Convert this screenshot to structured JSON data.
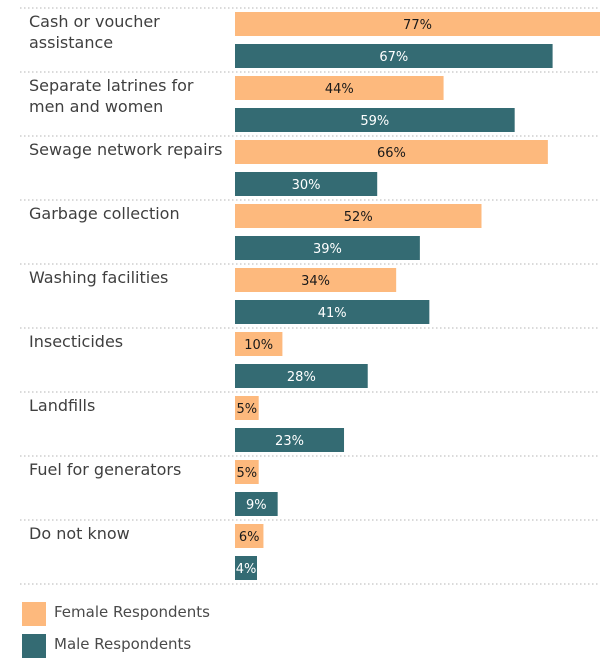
{
  "chart_data": {
    "type": "bar",
    "orientation": "horizontal",
    "categories": [
      "Cash or voucher assistance",
      "Separate latrines for men and women",
      "Sewage network repairs",
      "Garbage collection",
      "Washing facilities",
      "Insecticides",
      "Landfills",
      "Fuel for generators",
      "Do not know"
    ],
    "category_lines": [
      [
        "Cash or voucher",
        "assistance"
      ],
      [
        "Separate latrines for",
        "men and women"
      ],
      [
        "Sewage network repairs"
      ],
      [
        "Garbage collection"
      ],
      [
        "Washing facilities"
      ],
      [
        "Insecticides"
      ],
      [
        "Landfills"
      ],
      [
        "Fuel for generators"
      ],
      [
        "Do not know"
      ]
    ],
    "series": [
      {
        "name": "Female Respondents",
        "color": "#FDB97D",
        "label_color": "#1a1a1a",
        "values": [
          77,
          44,
          66,
          52,
          34,
          10,
          5,
          5,
          6
        ],
        "labels": [
          "77%",
          "44%",
          "66%",
          "52%",
          "34%",
          "10%",
          "5%",
          "5%",
          "6%"
        ]
      },
      {
        "name": "Male Respondents",
        "color": "#346B73",
        "label_color": "#ffffff",
        "values": [
          67,
          59,
          30,
          39,
          41,
          28,
          23,
          9,
          4
        ],
        "labels": [
          "67%",
          "59%",
          "30%",
          "39%",
          "41%",
          "28%",
          "23%",
          "9%",
          "4%"
        ]
      }
    ],
    "unit": "%",
    "xlim": [
      0,
      77
    ],
    "grid": false,
    "legend_position": "bottom-left"
  },
  "legend": [
    {
      "label": "Female Respondents",
      "color": "#FDB97D"
    },
    {
      "label": "Male Respondents",
      "color": "#346B73"
    }
  ]
}
